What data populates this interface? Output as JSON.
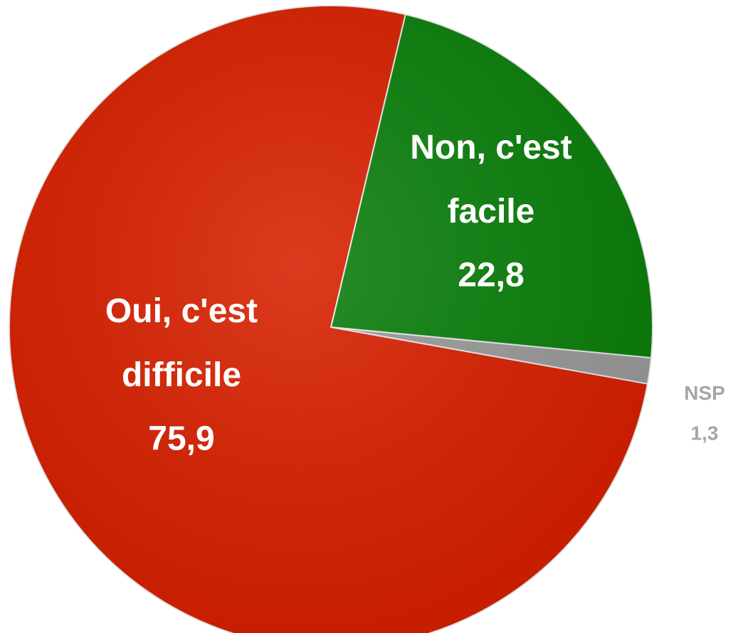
{
  "chart_data": {
    "type": "pie",
    "categories": [
      "Non, c'est facile",
      "NSP",
      "Oui, c'est difficile"
    ],
    "values": [
      22.8,
      1.3,
      75.9
    ],
    "value_labels": [
      "22,8",
      "1,3",
      "75,9"
    ],
    "colors": [
      "#0b7f0b",
      "#9a9a9a",
      "#d82000"
    ]
  }
}
